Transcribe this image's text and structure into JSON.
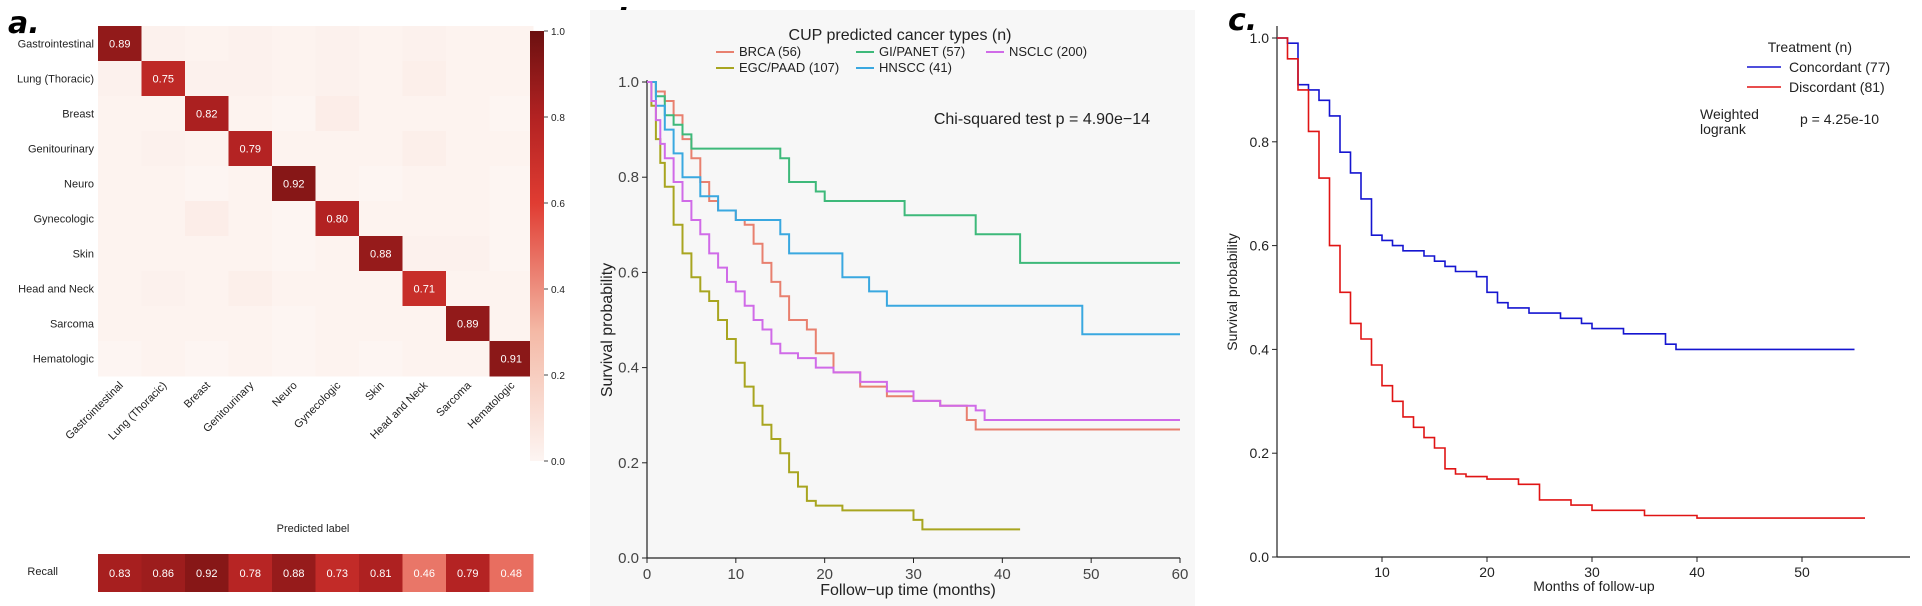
{
  "chart_data": [
    {
      "panel": "a.",
      "type": "heatmap",
      "xlabel": "Predicted label",
      "ylabel": "",
      "categories": [
        "Gastrointestinal",
        "Lung (Thoracic)",
        "Breast",
        "Genitourinary",
        "Neuro",
        "Gynecologic",
        "Skin",
        "Head and Neck",
        "Sarcoma",
        "Hematologic"
      ],
      "matrix": [
        [
          0.89,
          0.02,
          0.01,
          0.02,
          0.01,
          0.02,
          0.01,
          0.02,
          0.01,
          0.01
        ],
        [
          0.02,
          0.75,
          0.02,
          0.02,
          0.01,
          0.02,
          0.01,
          0.03,
          0.01,
          0.01
        ],
        [
          0.01,
          0.01,
          0.82,
          0.01,
          0.0,
          0.04,
          0.01,
          0.01,
          0.01,
          0.0
        ],
        [
          0.01,
          0.02,
          0.01,
          0.79,
          0.01,
          0.01,
          0.01,
          0.03,
          0.01,
          0.01
        ],
        [
          0.01,
          0.01,
          0.0,
          0.01,
          0.92,
          0.01,
          0.0,
          0.01,
          0.01,
          0.0
        ],
        [
          0.01,
          0.01,
          0.04,
          0.01,
          0.0,
          0.8,
          0.01,
          0.01,
          0.01,
          0.0
        ],
        [
          0.01,
          0.01,
          0.01,
          0.01,
          0.0,
          0.01,
          0.88,
          0.02,
          0.02,
          0.0
        ],
        [
          0.01,
          0.02,
          0.01,
          0.03,
          0.01,
          0.01,
          0.01,
          0.71,
          0.01,
          0.01
        ],
        [
          0.01,
          0.01,
          0.01,
          0.01,
          0.0,
          0.01,
          0.01,
          0.01,
          0.89,
          0.01
        ],
        [
          0.0,
          0.01,
          0.0,
          0.01,
          0.0,
          0.01,
          0.0,
          0.01,
          0.01,
          0.91
        ]
      ],
      "cell_labels": {
        "0": "0.89",
        "1": "0.75",
        "2": "0.82",
        "3": "0.79",
        "4": "0.92",
        "5": "0.80",
        "6": "0.88",
        "7": "0.71",
        "8": "0.89",
        "9": "0.91"
      },
      "colorbar": {
        "ticks": [
          "0.0",
          "0.2",
          "0.4",
          "0.6",
          "0.8",
          "1.0"
        ],
        "range": [
          0,
          1
        ]
      },
      "recall": {
        "label": "Recall",
        "values": [
          0.83,
          0.86,
          0.92,
          0.78,
          0.88,
          0.73,
          0.81,
          0.46,
          0.79,
          0.48
        ],
        "text": [
          "0.83",
          "0.86",
          "0.92",
          "0.78",
          "0.88",
          "0.73",
          "0.81",
          "0.46",
          "0.79",
          "0.48"
        ]
      },
      "colors": {
        "low": "#fdf5f2",
        "mid": "#e03c32",
        "high": "#6b1010"
      }
    },
    {
      "panel": "b.",
      "type": "line",
      "xlabel": "Follow−up time (months)",
      "ylabel": "Survival probability",
      "xlim": [
        0,
        60
      ],
      "ylim": [
        0,
        1
      ],
      "xticks": [
        "0",
        "10",
        "20",
        "30",
        "40",
        "50",
        "60"
      ],
      "yticks": [
        "0.0",
        "0.2",
        "0.4",
        "0.6",
        "0.8",
        "1.0"
      ],
      "legend_title": "CUP predicted cancer types (n)",
      "annotation": "Chi-squared test p = 4.90e−14",
      "series": [
        {
          "name": "BRCA (56)",
          "color": "#e8806f",
          "points": [
            [
              0,
              1
            ],
            [
              1,
              0.98
            ],
            [
              2,
              0.96
            ],
            [
              3,
              0.93
            ],
            [
              4,
              0.88
            ],
            [
              5,
              0.84
            ],
            [
              6,
              0.79
            ],
            [
              7,
              0.75
            ],
            [
              8,
              0.73
            ],
            [
              10,
              0.71
            ],
            [
              11,
              0.7
            ],
            [
              12,
              0.66
            ],
            [
              13,
              0.62
            ],
            [
              14,
              0.58
            ],
            [
              15,
              0.55
            ],
            [
              16,
              0.5
            ],
            [
              18,
              0.48
            ],
            [
              19,
              0.43
            ],
            [
              21,
              0.39
            ],
            [
              24,
              0.36
            ],
            [
              27,
              0.34
            ],
            [
              30,
              0.33
            ],
            [
              33,
              0.32
            ],
            [
              36,
              0.29
            ],
            [
              37,
              0.27
            ],
            [
              60,
              0.27
            ]
          ]
        },
        {
          "name": "EGC/PAAD (107)",
          "color": "#a8a520",
          "points": [
            [
              0,
              1
            ],
            [
              0.5,
              0.95
            ],
            [
              1,
              0.88
            ],
            [
              1.5,
              0.83
            ],
            [
              2,
              0.78
            ],
            [
              3,
              0.7
            ],
            [
              4,
              0.64
            ],
            [
              5,
              0.59
            ],
            [
              6,
              0.56
            ],
            [
              7,
              0.54
            ],
            [
              8,
              0.5
            ],
            [
              9,
              0.46
            ],
            [
              10,
              0.41
            ],
            [
              11,
              0.36
            ],
            [
              12,
              0.32
            ],
            [
              13,
              0.28
            ],
            [
              14,
              0.25
            ],
            [
              15,
              0.22
            ],
            [
              16,
              0.18
            ],
            [
              17,
              0.15
            ],
            [
              18,
              0.12
            ],
            [
              19,
              0.11
            ],
            [
              22,
              0.1
            ],
            [
              30,
              0.08
            ],
            [
              31,
              0.06
            ],
            [
              42,
              0.06
            ]
          ]
        },
        {
          "name": "GI/PANET (57)",
          "color": "#3eb97a",
          "points": [
            [
              0,
              1
            ],
            [
              1,
              0.97
            ],
            [
              2,
              0.93
            ],
            [
              3,
              0.91
            ],
            [
              4,
              0.89
            ],
            [
              5,
              0.86
            ],
            [
              8,
              0.86
            ],
            [
              15,
              0.84
            ],
            [
              16,
              0.79
            ],
            [
              19,
              0.77
            ],
            [
              20,
              0.75
            ],
            [
              24,
              0.75
            ],
            [
              29,
              0.72
            ],
            [
              36,
              0.72
            ],
            [
              37,
              0.68
            ],
            [
              41,
              0.68
            ],
            [
              42,
              0.62
            ],
            [
              60,
              0.62
            ]
          ]
        },
        {
          "name": "HNSCC (41)",
          "color": "#3aa8e0",
          "points": [
            [
              0,
              1
            ],
            [
              1,
              0.95
            ],
            [
              2,
              0.9
            ],
            [
              3,
              0.85
            ],
            [
              4,
              0.8
            ],
            [
              6,
              0.76
            ],
            [
              8,
              0.73
            ],
            [
              10,
              0.71
            ],
            [
              14,
              0.71
            ],
            [
              15,
              0.68
            ],
            [
              16,
              0.64
            ],
            [
              19,
              0.64
            ],
            [
              22,
              0.59
            ],
            [
              25,
              0.56
            ],
            [
              27,
              0.53
            ],
            [
              33,
              0.53
            ],
            [
              48,
              0.53
            ],
            [
              49,
              0.47
            ],
            [
              60,
              0.47
            ]
          ]
        },
        {
          "name": "NSCLC (200)",
          "color": "#d06be8",
          "points": [
            [
              0,
              1
            ],
            [
              0.5,
              0.96
            ],
            [
              1,
              0.92
            ],
            [
              1.5,
              0.87
            ],
            [
              2,
              0.84
            ],
            [
              3,
              0.79
            ],
            [
              4,
              0.75
            ],
            [
              5,
              0.71
            ],
            [
              6,
              0.68
            ],
            [
              7,
              0.64
            ],
            [
              8,
              0.61
            ],
            [
              9,
              0.58
            ],
            [
              10,
              0.56
            ],
            [
              11,
              0.53
            ],
            [
              12,
              0.5
            ],
            [
              13,
              0.48
            ],
            [
              14,
              0.45
            ],
            [
              15,
              0.43
            ],
            [
              17,
              0.42
            ],
            [
              19,
              0.4
            ],
            [
              21,
              0.39
            ],
            [
              24,
              0.37
            ],
            [
              27,
              0.35
            ],
            [
              30,
              0.33
            ],
            [
              33,
              0.32
            ],
            [
              37,
              0.31
            ],
            [
              38,
              0.29
            ],
            [
              60,
              0.29
            ]
          ]
        }
      ]
    },
    {
      "panel": "c.",
      "type": "line",
      "xlabel": "Months of follow-up",
      "ylabel": "Survival probability",
      "xlim": [
        0,
        60
      ],
      "ylim": [
        0,
        1
      ],
      "xticks": [
        "10",
        "20",
        "30",
        "40",
        "50"
      ],
      "yticks": [
        "0.0",
        "0.2",
        "0.4",
        "0.6",
        "0.8",
        "1.0"
      ],
      "legend_title": "Treatment (n)",
      "annotation_left": "Weighted logrank",
      "annotation_right": "p = 4.25e-10",
      "series": [
        {
          "name": "Concordant (77)",
          "color": "#1515d0",
          "points": [
            [
              0,
              1
            ],
            [
              1,
              0.99
            ],
            [
              2,
              0.91
            ],
            [
              3,
              0.9
            ],
            [
              4,
              0.88
            ],
            [
              5,
              0.85
            ],
            [
              6,
              0.78
            ],
            [
              7,
              0.74
            ],
            [
              8,
              0.69
            ],
            [
              9,
              0.62
            ],
            [
              10,
              0.61
            ],
            [
              11,
              0.6
            ],
            [
              12,
              0.59
            ],
            [
              14,
              0.58
            ],
            [
              15,
              0.57
            ],
            [
              16,
              0.56
            ],
            [
              17,
              0.55
            ],
            [
              19,
              0.54
            ],
            [
              20,
              0.51
            ],
            [
              21,
              0.49
            ],
            [
              22,
              0.48
            ],
            [
              24,
              0.47
            ],
            [
              27,
              0.46
            ],
            [
              29,
              0.45
            ],
            [
              30,
              0.44
            ],
            [
              33,
              0.43
            ],
            [
              37,
              0.41
            ],
            [
              38,
              0.4
            ],
            [
              55,
              0.4
            ]
          ]
        },
        {
          "name": "Discordant (81)",
          "color": "#e01414",
          "points": [
            [
              0,
              1
            ],
            [
              1,
              0.96
            ],
            [
              2,
              0.9
            ],
            [
              3,
              0.82
            ],
            [
              4,
              0.73
            ],
            [
              5,
              0.6
            ],
            [
              6,
              0.51
            ],
            [
              7,
              0.45
            ],
            [
              8,
              0.42
            ],
            [
              9,
              0.37
            ],
            [
              10,
              0.33
            ],
            [
              11,
              0.3
            ],
            [
              12,
              0.27
            ],
            [
              13,
              0.25
            ],
            [
              14,
              0.23
            ],
            [
              15,
              0.21
            ],
            [
              16,
              0.17
            ],
            [
              17,
              0.16
            ],
            [
              18,
              0.155
            ],
            [
              20,
              0.15
            ],
            [
              23,
              0.14
            ],
            [
              25,
              0.11
            ],
            [
              28,
              0.1
            ],
            [
              30,
              0.09
            ],
            [
              35,
              0.08
            ],
            [
              40,
              0.075
            ],
            [
              56,
              0.075
            ]
          ]
        }
      ]
    }
  ]
}
